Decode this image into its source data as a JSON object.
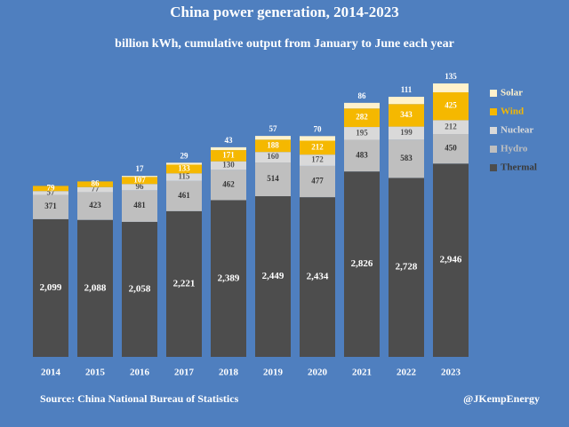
{
  "chart_data": {
    "type": "stacked_bar",
    "title": "China power generation, 2014-2023",
    "subtitle": "billion kWh, cumulative output from January to June each year",
    "source": "Source: China National Bureau of Statistics",
    "credit": "@JKempEnergy",
    "legend": "right",
    "categories": [
      "2014",
      "2015",
      "2016",
      "2017",
      "2018",
      "2019",
      "2020",
      "2021",
      "2022",
      "2023"
    ],
    "series": [
      {
        "name": "Thermal",
        "color": "#4d4d4d",
        "values": [
          2099,
          2088,
          2058,
          2221,
          2389,
          2449,
          2434,
          2826,
          2728,
          2946
        ],
        "value_labels": [
          "2,099",
          "2,088",
          "2,058",
          "2,221",
          "2,389",
          "2,449",
          "2,434",
          "2,826",
          "2,728",
          "2,946"
        ]
      },
      {
        "name": "Hydro",
        "color": "#bfbfbf",
        "values": [
          371,
          423,
          481,
          461,
          462,
          514,
          477,
          483,
          583,
          450
        ]
      },
      {
        "name": "Nuclear",
        "color": "#d9d9d9",
        "values": [
          57,
          77,
          96,
          115,
          130,
          160,
          172,
          195,
          199,
          212
        ]
      },
      {
        "name": "Wind",
        "color": "#f5b800",
        "values": [
          79,
          86,
          107,
          133,
          171,
          188,
          212,
          282,
          343,
          425
        ]
      },
      {
        "name": "Solar",
        "color": "#fff2cc",
        "values": [
          null,
          null,
          17,
          29,
          43,
          57,
          70,
          86,
          111,
          135
        ]
      }
    ]
  }
}
